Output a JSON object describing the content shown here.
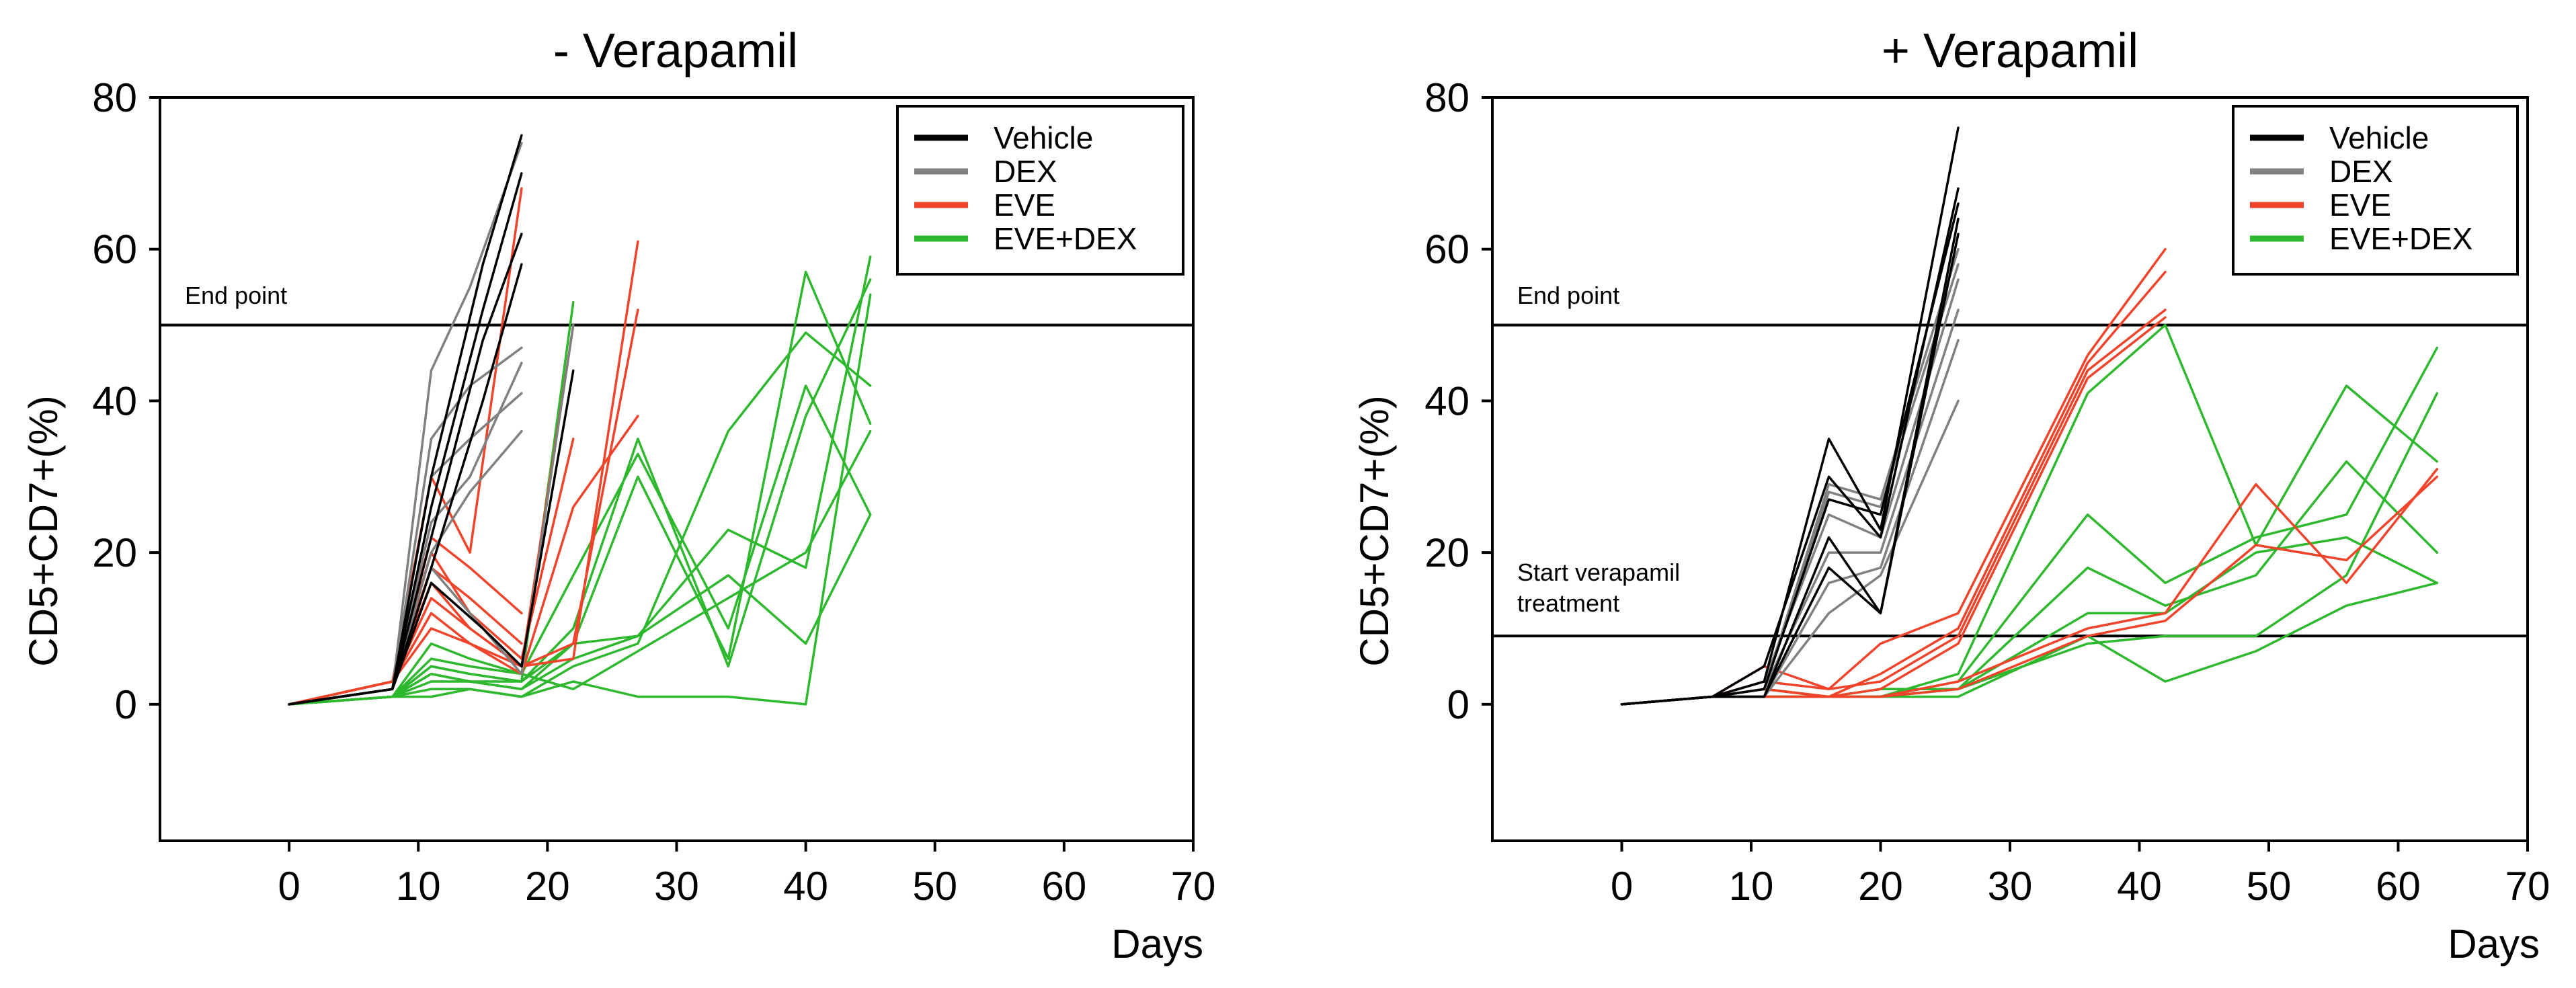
{
  "chart_data": [
    {
      "type": "line",
      "title": "- Verapamil",
      "xlabel": "Days",
      "ylabel": "CD5+CD7+(%)",
      "xlim": [
        -10,
        70
      ],
      "ylim": [
        -18,
        80
      ],
      "xticks": [
        0,
        10,
        20,
        30,
        40,
        50,
        60,
        70
      ],
      "yticks": [
        0,
        20,
        40,
        60,
        80
      ],
      "legend": [
        {
          "name": "Vehicle",
          "color": "#000000"
        },
        {
          "name": "DEX",
          "color": "#808080"
        },
        {
          "name": "EVE",
          "color": "#f0432a"
        },
        {
          "name": "EVE+DEX",
          "color": "#2db82d"
        }
      ],
      "reference_lines": [
        {
          "y": 50,
          "label": "End point"
        }
      ],
      "series": [
        {
          "group": "Vehicle",
          "x": [
            0,
            8,
            11,
            15,
            18
          ],
          "y": [
            0,
            2,
            22,
            48,
            62
          ]
        },
        {
          "group": "Vehicle",
          "x": [
            0,
            8,
            11,
            15,
            18
          ],
          "y": [
            0,
            2,
            30,
            58,
            75
          ]
        },
        {
          "group": "Vehicle",
          "x": [
            0,
            8,
            11,
            15,
            18
          ],
          "y": [
            0,
            2,
            18,
            40,
            58
          ]
        },
        {
          "group": "Vehicle",
          "x": [
            0,
            8,
            11,
            15,
            18
          ],
          "y": [
            0,
            2,
            26,
            52,
            70
          ]
        },
        {
          "group": "Vehicle",
          "x": [
            0,
            8,
            11,
            15,
            18,
            22
          ],
          "y": [
            0,
            2,
            16,
            10,
            5,
            44
          ]
        },
        {
          "group": "DEX",
          "x": [
            0,
            8,
            11,
            14,
            18
          ],
          "y": [
            0,
            2,
            44,
            55,
            74
          ]
        },
        {
          "group": "DEX",
          "x": [
            0,
            8,
            11,
            14,
            18
          ],
          "y": [
            0,
            2,
            35,
            42,
            47
          ]
        },
        {
          "group": "DEX",
          "x": [
            0,
            8,
            11,
            14,
            18
          ],
          "y": [
            0,
            2,
            24,
            30,
            45
          ]
        },
        {
          "group": "DEX",
          "x": [
            0,
            8,
            11,
            14,
            18
          ],
          "y": [
            0,
            2,
            30,
            35,
            41
          ]
        },
        {
          "group": "DEX",
          "x": [
            0,
            8,
            11,
            14,
            18
          ],
          "y": [
            0,
            2,
            20,
            28,
            36
          ]
        },
        {
          "group": "DEX",
          "x": [
            0,
            8,
            11,
            15,
            18,
            22
          ],
          "y": [
            0,
            2,
            18,
            10,
            4,
            50
          ]
        },
        {
          "group": "EVE",
          "x": [
            0,
            8,
            11,
            14,
            18
          ],
          "y": [
            0,
            3,
            30,
            20,
            68
          ]
        },
        {
          "group": "EVE",
          "x": [
            0,
            8,
            11,
            14,
            18
          ],
          "y": [
            0,
            3,
            22,
            18,
            12
          ]
        },
        {
          "group": "EVE",
          "x": [
            0,
            8,
            11,
            14,
            18
          ],
          "y": [
            0,
            3,
            18,
            14,
            8
          ]
        },
        {
          "group": "EVE",
          "x": [
            0,
            8,
            11,
            14,
            18,
            22
          ],
          "y": [
            0,
            3,
            20,
            12,
            6,
            35
          ]
        },
        {
          "group": "EVE",
          "x": [
            0,
            8,
            11,
            14,
            18,
            22
          ],
          "y": [
            0,
            3,
            16,
            10,
            5,
            50
          ]
        },
        {
          "group": "EVE",
          "x": [
            0,
            8,
            11,
            14,
            18,
            22,
            27
          ],
          "y": [
            0,
            3,
            14,
            10,
            5,
            6,
            61
          ]
        },
        {
          "group": "EVE",
          "x": [
            0,
            8,
            11,
            14,
            18,
            22,
            27
          ],
          "y": [
            0,
            3,
            12,
            8,
            5,
            8,
            52
          ]
        },
        {
          "group": "EVE",
          "x": [
            0,
            8,
            11,
            14,
            18,
            22,
            27
          ],
          "y": [
            0,
            3,
            10,
            8,
            4,
            26,
            38
          ]
        },
        {
          "group": "EVE+DEX",
          "x": [
            0,
            8,
            11,
            14,
            18,
            22,
            27,
            34,
            40,
            45
          ],
          "y": [
            0,
            1,
            8,
            6,
            4,
            17,
            33,
            10,
            42,
            25
          ]
        },
        {
          "group": "EVE+DEX",
          "x": [
            0,
            8,
            11,
            14,
            18,
            22,
            27,
            34,
            40,
            45
          ],
          "y": [
            0,
            1,
            5,
            4,
            3,
            10,
            35,
            5,
            38,
            56
          ]
        },
        {
          "group": "EVE+DEX",
          "x": [
            0,
            8,
            11,
            14,
            18,
            22,
            27,
            34,
            40,
            45
          ],
          "y": [
            0,
            1,
            4,
            3,
            2,
            8,
            30,
            6,
            57,
            37
          ]
        },
        {
          "group": "EVE+DEX",
          "x": [
            0,
            8,
            11,
            14,
            18,
            22,
            27,
            34,
            40,
            45
          ],
          "y": [
            0,
            1,
            3,
            3,
            2,
            6,
            9,
            23,
            18,
            59
          ]
        },
        {
          "group": "EVE+DEX",
          "x": [
            0,
            8,
            11,
            14,
            18,
            22,
            27,
            34,
            40,
            45
          ],
          "y": [
            0,
            1,
            2,
            2,
            1,
            5,
            8,
            36,
            49,
            42
          ]
        },
        {
          "group": "EVE+DEX",
          "x": [
            0,
            8,
            11,
            14,
            18,
            22,
            27,
            34,
            40,
            45
          ],
          "y": [
            0,
            1,
            1,
            2,
            1,
            3,
            1,
            1,
            0,
            54
          ]
        },
        {
          "group": "EVE+DEX",
          "x": [
            0,
            8,
            11,
            14,
            18,
            22,
            27,
            34,
            40,
            45
          ],
          "y": [
            0,
            1,
            6,
            5,
            4,
            2,
            7,
            14,
            20,
            36
          ]
        },
        {
          "group": "EVE+DEX",
          "x": [
            0,
            8,
            11,
            14,
            18,
            22,
            27,
            34,
            40,
            45
          ],
          "y": [
            0,
            1,
            4,
            3,
            3,
            8,
            9,
            17,
            8,
            25
          ]
        },
        {
          "group": "EVE+DEX",
          "x": [
            0,
            8,
            11,
            14,
            18,
            22
          ],
          "y": [
            0,
            1,
            5,
            4,
            3,
            53
          ]
        }
      ]
    },
    {
      "type": "line",
      "title": "+ Verapamil",
      "xlabel": "Days",
      "ylabel": "CD5+CD7+(%)",
      "xlim": [
        -10,
        70
      ],
      "ylim": [
        -18,
        80
      ],
      "xticks": [
        0,
        10,
        20,
        30,
        40,
        50,
        60,
        70
      ],
      "yticks": [
        0,
        20,
        40,
        60,
        80
      ],
      "legend": [
        {
          "name": "Vehicle",
          "color": "#000000"
        },
        {
          "name": "DEX",
          "color": "#808080"
        },
        {
          "name": "EVE",
          "color": "#f0432a"
        },
        {
          "name": "EVE+DEX",
          "color": "#2db82d"
        }
      ],
      "reference_lines": [
        {
          "y": 50,
          "label": "End point"
        },
        {
          "y": 9,
          "label": "Start verapamil treatment"
        }
      ],
      "series": [
        {
          "group": "Vehicle",
          "x": [
            0,
            7,
            11,
            16,
            20,
            26
          ],
          "y": [
            0,
            1,
            3,
            35,
            23,
            76
          ]
        },
        {
          "group": "Vehicle",
          "x": [
            0,
            7,
            11,
            16,
            20,
            26
          ],
          "y": [
            0,
            1,
            5,
            30,
            22,
            68
          ]
        },
        {
          "group": "Vehicle",
          "x": [
            0,
            7,
            11,
            16,
            20,
            26
          ],
          "y": [
            0,
            1,
            2,
            27,
            25,
            66
          ]
        },
        {
          "group": "Vehicle",
          "x": [
            0,
            7,
            11,
            16,
            20,
            26
          ],
          "y": [
            0,
            1,
            1,
            22,
            12,
            64
          ]
        },
        {
          "group": "Vehicle",
          "x": [
            0,
            7,
            11,
            16,
            20,
            26
          ],
          "y": [
            0,
            1,
            1,
            18,
            12,
            62
          ]
        },
        {
          "group": "DEX",
          "x": [
            0,
            7,
            11,
            16,
            20,
            26
          ],
          "y": [
            0,
            1,
            2,
            29,
            27,
            60
          ]
        },
        {
          "group": "DEX",
          "x": [
            0,
            7,
            11,
            16,
            20,
            26
          ],
          "y": [
            0,
            1,
            2,
            28,
            26,
            58
          ]
        },
        {
          "group": "DEX",
          "x": [
            0,
            7,
            11,
            16,
            20,
            26
          ],
          "y": [
            0,
            1,
            3,
            25,
            22,
            56
          ]
        },
        {
          "group": "DEX",
          "x": [
            0,
            7,
            11,
            16,
            20,
            26
          ],
          "y": [
            0,
            1,
            2,
            20,
            20,
            52
          ]
        },
        {
          "group": "DEX",
          "x": [
            0,
            7,
            11,
            16,
            20,
            26
          ],
          "y": [
            0,
            1,
            1,
            16,
            18,
            48
          ]
        },
        {
          "group": "DEX",
          "x": [
            0,
            7,
            11,
            16,
            20,
            26
          ],
          "y": [
            0,
            1,
            1,
            12,
            17,
            40
          ]
        },
        {
          "group": "EVE",
          "x": [
            0,
            7,
            11,
            16,
            20,
            26,
            36,
            42
          ],
          "y": [
            0,
            1,
            3,
            2,
            8,
            12,
            46,
            60
          ]
        },
        {
          "group": "EVE",
          "x": [
            0,
            7,
            11,
            16,
            20,
            26,
            36,
            42
          ],
          "y": [
            0,
            1,
            2,
            1,
            4,
            10,
            45,
            57
          ]
        },
        {
          "group": "EVE",
          "x": [
            0,
            7,
            11,
            16,
            20,
            26,
            36,
            42
          ],
          "y": [
            0,
            1,
            5,
            2,
            3,
            9,
            44,
            52
          ]
        },
        {
          "group": "EVE",
          "x": [
            0,
            7,
            11,
            16,
            20,
            26,
            36,
            42
          ],
          "y": [
            0,
            1,
            2,
            1,
            2,
            8,
            43,
            51
          ]
        },
        {
          "group": "EVE",
          "x": [
            0,
            7,
            11,
            16,
            20,
            26,
            36,
            42,
            49,
            56,
            63
          ],
          "y": [
            0,
            1,
            1,
            1,
            1,
            3,
            10,
            12,
            29,
            16,
            31
          ]
        },
        {
          "group": "EVE",
          "x": [
            0,
            7,
            11,
            16,
            20,
            26,
            36,
            42,
            49,
            56,
            63
          ],
          "y": [
            0,
            1,
            1,
            1,
            1,
            2,
            9,
            11,
            21,
            19,
            30
          ]
        },
        {
          "group": "EVE+DEX",
          "x": [
            0,
            7,
            11,
            16,
            20,
            26,
            36,
            42,
            49,
            56,
            63
          ],
          "y": [
            0,
            1,
            2,
            1,
            1,
            4,
            41,
            50,
            21,
            42,
            32
          ]
        },
        {
          "group": "EVE+DEX",
          "x": [
            0,
            7,
            11,
            16,
            20,
            26,
            36,
            42,
            49,
            56,
            63
          ],
          "y": [
            0,
            1,
            2,
            1,
            1,
            3,
            25,
            16,
            22,
            25,
            47
          ]
        },
        {
          "group": "EVE+DEX",
          "x": [
            0,
            7,
            11,
            16,
            20,
            26,
            36,
            42,
            49,
            56,
            63
          ],
          "y": [
            0,
            1,
            1,
            1,
            1,
            2,
            18,
            13,
            17,
            32,
            20
          ]
        },
        {
          "group": "EVE+DEX",
          "x": [
            0,
            7,
            11,
            16,
            20,
            26,
            36,
            42,
            49,
            56,
            63
          ],
          "y": [
            0,
            1,
            1,
            1,
            2,
            2,
            12,
            12,
            20,
            22,
            16
          ]
        },
        {
          "group": "EVE+DEX",
          "x": [
            0,
            7,
            11,
            16,
            20,
            26,
            36,
            42,
            49,
            56,
            63
          ],
          "y": [
            0,
            1,
            1,
            1,
            1,
            2,
            8,
            9,
            9,
            17,
            41
          ]
        },
        {
          "group": "EVE+DEX",
          "x": [
            0,
            7,
            11,
            16,
            20,
            26,
            36,
            42,
            49,
            56,
            63
          ],
          "y": [
            0,
            1,
            1,
            1,
            1,
            1,
            9,
            3,
            7,
            13,
            16
          ]
        }
      ]
    }
  ]
}
